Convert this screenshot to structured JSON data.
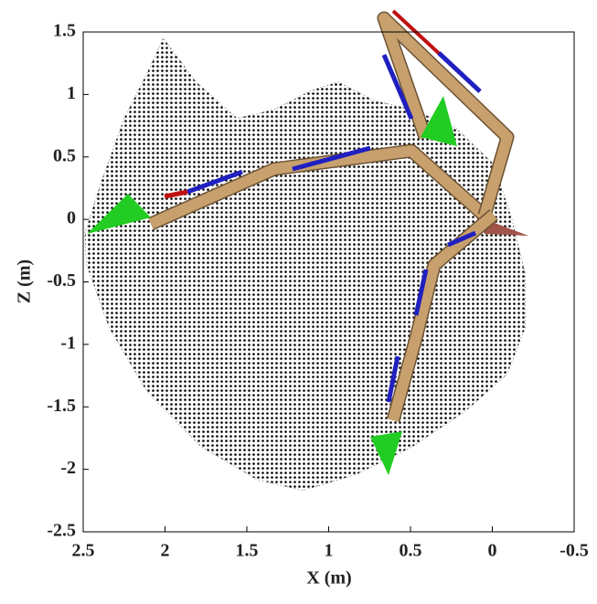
{
  "chart_data": {
    "type": "area",
    "xlabel": "X (m)",
    "ylabel": "Z (m)",
    "xlim": [
      2.5,
      -0.5
    ],
    "xticks": [
      2.5,
      2,
      1.5,
      1,
      0.5,
      0,
      -0.5
    ],
    "ylim": [
      -2.5,
      1.5
    ],
    "yticks": [
      1.5,
      1,
      0.5,
      0,
      -0.5,
      -1,
      -1.5,
      -2,
      -2.5
    ],
    "series": [
      {
        "color": "#000000",
        "x": [
          2.49,
          2.39,
          2.25,
          2.11,
          2.01,
          1.81,
          1.56,
          1.33,
          1.11,
          0.94,
          0.72,
          0.49,
          0.22,
          -0.01,
          -0.12,
          -0.2,
          -0.2,
          -0.09,
          0.16,
          0.49,
          0.83,
          1.16,
          1.44,
          1.78,
          2.11,
          2.34,
          2.48
        ],
        "y": [
          -0.11,
          0.3,
          0.81,
          1.17,
          1.45,
          1.1,
          0.81,
          0.88,
          1.03,
          1.1,
          0.95,
          0.88,
          0.73,
          0.44,
          0.0,
          -0.43,
          -0.87,
          -1.24,
          -1.53,
          -1.82,
          -2.04,
          -2.17,
          -2.08,
          -1.82,
          -1.38,
          -0.87,
          -0.36
        ]
      }
    ]
  }
}
